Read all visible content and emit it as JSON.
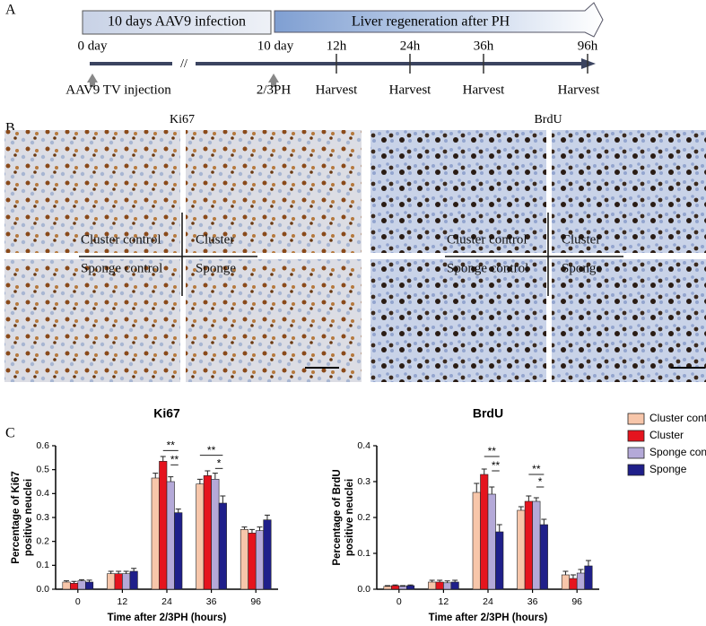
{
  "timeline": {
    "panel": "A",
    "box1": "10 days AAV9 infection",
    "box2": "Liver regeneration after PH",
    "start": "0 day",
    "break": "//",
    "times": [
      "10 day",
      "12h",
      "24h",
      "36h",
      "96h"
    ],
    "events": [
      "AAV9 TV injection",
      "2/3PH",
      "Harvest",
      "Harvest",
      "Harvest",
      "Harvest"
    ]
  },
  "images": {
    "panel": "B",
    "groups": [
      {
        "title": "Ki67",
        "labels": [
          "Cluster control",
          "Cluster",
          "Sponge control",
          "Sponge"
        ]
      },
      {
        "title": "BrdU",
        "labels": [
          "Cluster control",
          "Cluster",
          "Sponge control",
          "Sponge"
        ]
      }
    ]
  },
  "panel_c": "C",
  "chart_data": [
    {
      "type": "bar",
      "title": "Ki67",
      "ylabel": [
        "Percentage of Ki67",
        "positive neuclei"
      ],
      "xlabel": "Time after 2/3PH (hours)",
      "categories": [
        "0",
        "12",
        "24",
        "36",
        "96"
      ],
      "series": [
        {
          "color": "#f7c6aa",
          "values": [
            0.03,
            0.065,
            0.465,
            0.44,
            0.25
          ],
          "errors": [
            0.005,
            0.01,
            0.02,
            0.02,
            0.01
          ]
        },
        {
          "color": "#e5141e",
          "values": [
            0.025,
            0.065,
            0.535,
            0.475,
            0.235
          ],
          "errors": [
            0.008,
            0.01,
            0.02,
            0.02,
            0.015
          ]
        },
        {
          "color": "#b4a9d8",
          "values": [
            0.035,
            0.065,
            0.45,
            0.46,
            0.245
          ],
          "errors": [
            0.005,
            0.01,
            0.02,
            0.025,
            0.015
          ]
        },
        {
          "color": "#1f1f8a",
          "values": [
            0.03,
            0.075,
            0.32,
            0.36,
            0.29
          ],
          "errors": [
            0.008,
            0.012,
            0.015,
            0.03,
            0.02
          ]
        }
      ],
      "annotations": [
        "**",
        "**",
        "**",
        "*"
      ],
      "ylim": [
        0,
        0.6
      ],
      "yticks": [
        {
          "value": 0,
          "label": "0.0"
        },
        0.1,
        0.2,
        0.3,
        0.4,
        0.5,
        0.6
      ]
    },
    {
      "type": "bar",
      "title": "BrdU",
      "ylabel": [
        "Percentage of BrdU",
        "positive neuclei"
      ],
      "xlabel": "Time after 2/3PH (hours)",
      "categories": [
        "0",
        "12",
        "24",
        "36",
        "96"
      ],
      "series": [
        {
          "name": "Cluster control",
          "color": "#f7c6aa",
          "values": [
            0.008,
            0.02,
            0.27,
            0.22,
            0.04
          ],
          "errors": [
            0.002,
            0.005,
            0.025,
            0.01,
            0.01
          ]
        },
        {
          "name": "Cluster",
          "color": "#e5141e",
          "values": [
            0.01,
            0.02,
            0.32,
            0.245,
            0.03
          ],
          "errors": [
            0.002,
            0.005,
            0.015,
            0.015,
            0.01
          ]
        },
        {
          "name": "Sponge control",
          "color": "#b4a9d8",
          "values": [
            0.008,
            0.018,
            0.265,
            0.245,
            0.045
          ],
          "errors": [
            0.002,
            0.005,
            0.02,
            0.01,
            0.01
          ]
        },
        {
          "name": "Sponge",
          "color": "#1f1f8a",
          "values": [
            0.01,
            0.02,
            0.16,
            0.18,
            0.065
          ],
          "errors": [
            0.002,
            0.005,
            0.02,
            0.015,
            0.015
          ]
        }
      ],
      "annotations": [
        "**",
        "**",
        "**",
        "*"
      ],
      "legend": "right",
      "ylim": [
        0,
        0.4
      ],
      "yticks": [
        {
          "value": 0,
          "label": "0.0"
        },
        0.1,
        0.2,
        0.3,
        0.4
      ]
    }
  ]
}
